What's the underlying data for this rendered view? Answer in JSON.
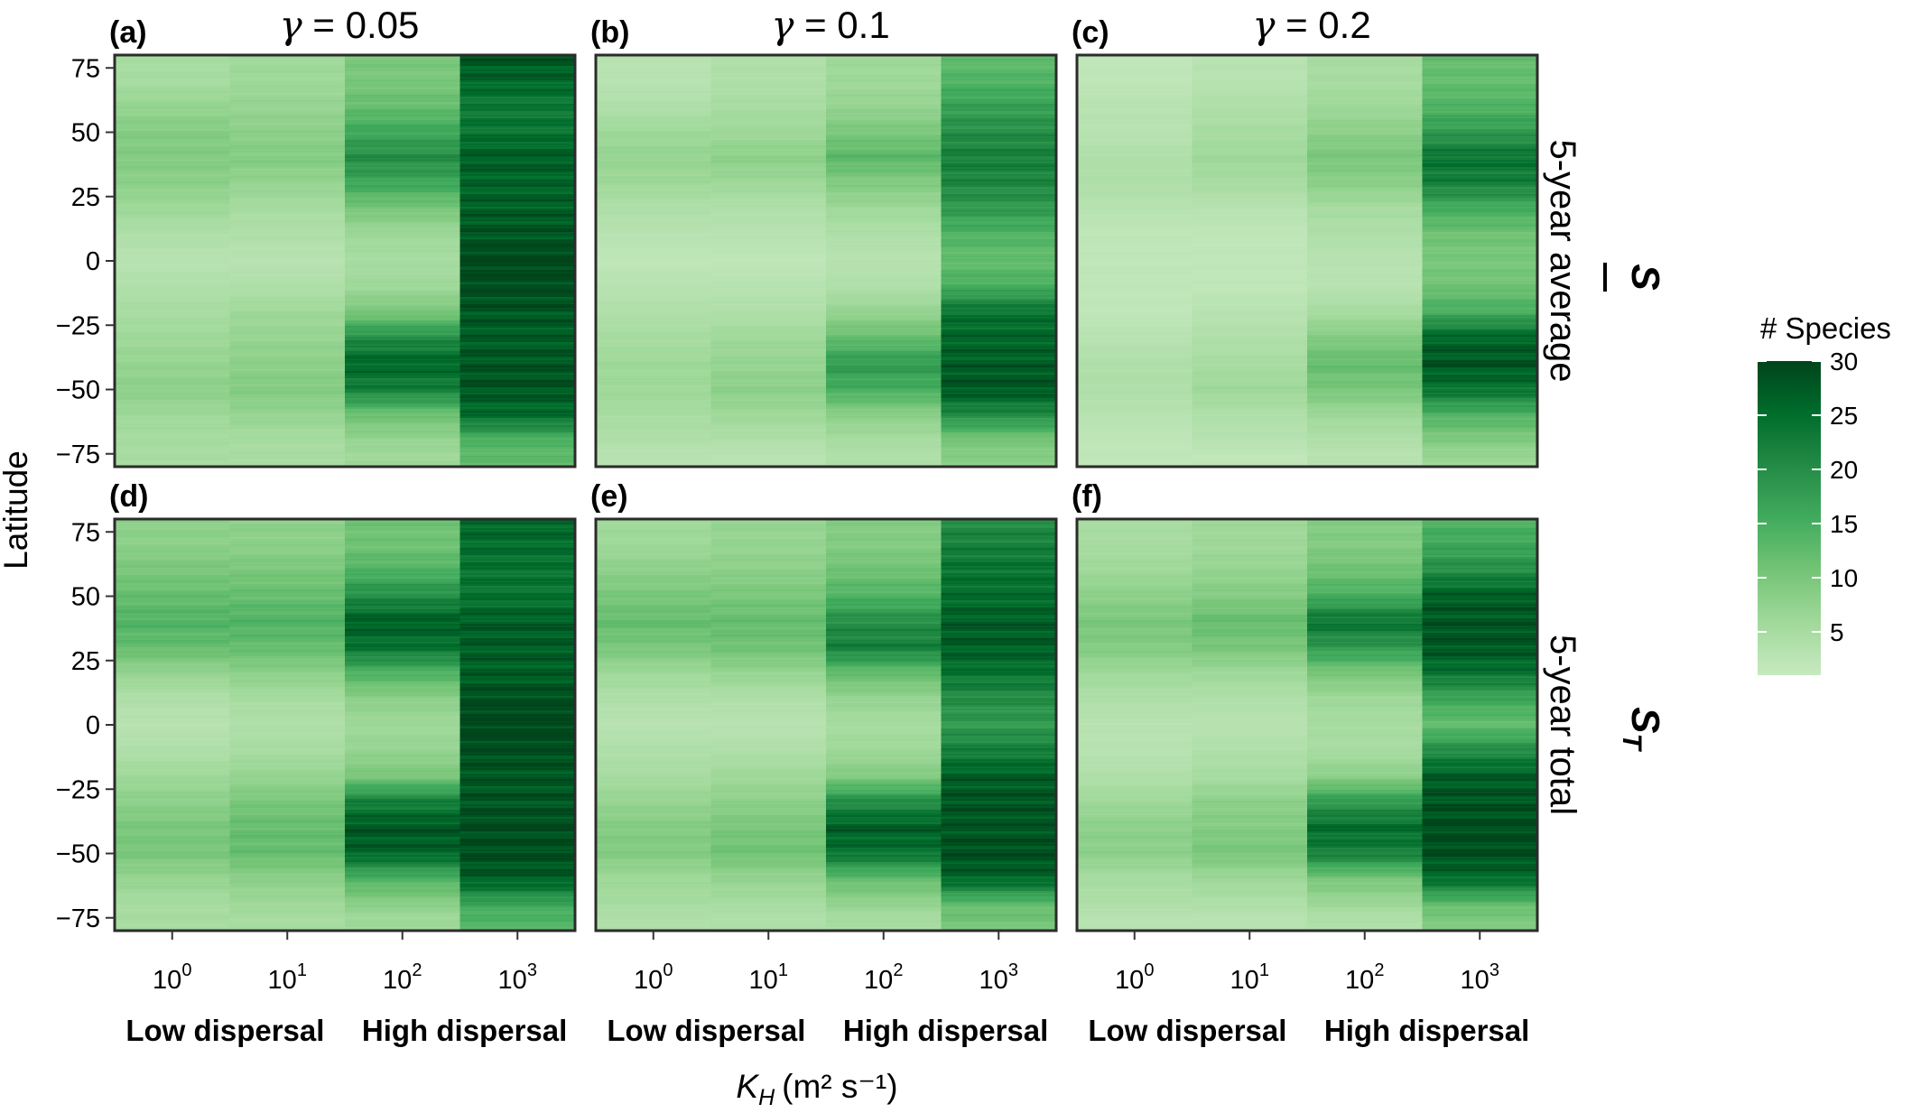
{
  "chart_data": {
    "type": "heatmap",
    "title": "",
    "xlabel": "K_H (m² s⁻¹)",
    "xlabel_main": "K",
    "xlabel_sub": "H",
    "xlabel_units": "(m² s⁻¹)",
    "ylabel": "Latitude",
    "x_categories": [
      "10^0",
      "10^1",
      "10^2",
      "10^3"
    ],
    "x_tick_base": "10",
    "x_tick_exponents": [
      "0",
      "1",
      "2",
      "3"
    ],
    "y_ticks": [
      75,
      50,
      25,
      0,
      -25,
      -50,
      -75
    ],
    "y_tick_labels": [
      "75",
      "50",
      "25",
      "0",
      "−25",
      "−50",
      "−75"
    ],
    "ylim": [
      -80,
      80
    ],
    "dispersal_labels": {
      "low": "Low dispersal",
      "high": "High dispersal"
    },
    "columns": [
      {
        "title": "γ = 0.05",
        "gamma": 0.05
      },
      {
        "title": "γ = 0.1",
        "gamma": 0.1
      },
      {
        "title": "γ = 0.2",
        "gamma": 0.2
      }
    ],
    "rows": [
      {
        "strip": "5-year average",
        "symbol_main": "S",
        "symbol_sub": "",
        "overline": true
      },
      {
        "strip": "5-year total",
        "symbol_main": "S",
        "symbol_sub": "T",
        "overline": false
      }
    ],
    "legend": {
      "title": "# Species",
      "ticks": [
        5,
        10,
        15,
        20,
        25,
        30
      ],
      "range": [
        1,
        30
      ],
      "colors": [
        "#c7e9c0",
        "#a1d99b",
        "#74c476",
        "#41ab5d",
        "#238b45",
        "#006d2c",
        "#00441b"
      ]
    },
    "panels": [
      {
        "label": "(a)",
        "lat_knots": [
          -80,
          -75,
          -70,
          -60,
          -50,
          -40,
          -30,
          -20,
          -10,
          0,
          10,
          20,
          30,
          40,
          50,
          60,
          70,
          80
        ],
        "values": [
          [
            5,
            5,
            5,
            6,
            8,
            7,
            6,
            5,
            4,
            3,
            4,
            6,
            8,
            9,
            9,
            7,
            5,
            5
          ],
          [
            5,
            5,
            5,
            7,
            9,
            8,
            7,
            6,
            4,
            3,
            4,
            5,
            7,
            9,
            8,
            7,
            6,
            6
          ],
          [
            6,
            6,
            7,
            11,
            22,
            26,
            20,
            10,
            6,
            5,
            6,
            10,
            16,
            20,
            16,
            12,
            10,
            10
          ],
          [
            12,
            13,
            14,
            25,
            28,
            28,
            27,
            28,
            29,
            30,
            28,
            27,
            26,
            27,
            24,
            23,
            26,
            28
          ]
        ]
      },
      {
        "label": "(b)",
        "lat_knots": [
          -80,
          -75,
          -70,
          -60,
          -50,
          -40,
          -30,
          -20,
          -10,
          0,
          10,
          20,
          30,
          40,
          50,
          60,
          70,
          80
        ],
        "values": [
          [
            3,
            3,
            4,
            5,
            6,
            6,
            5,
            4,
            3,
            2,
            3,
            4,
            6,
            7,
            6,
            4,
            3,
            3
          ],
          [
            3,
            3,
            4,
            6,
            8,
            7,
            6,
            4,
            3,
            2,
            3,
            4,
            6,
            8,
            6,
            5,
            4,
            4
          ],
          [
            4,
            4,
            5,
            8,
            15,
            18,
            12,
            7,
            4,
            3,
            4,
            6,
            9,
            13,
            10,
            7,
            6,
            6
          ],
          [
            8,
            9,
            10,
            20,
            28,
            27,
            26,
            24,
            15,
            12,
            14,
            18,
            21,
            22,
            20,
            17,
            14,
            12
          ]
        ]
      },
      {
        "label": "(c)",
        "lat_knots": [
          -80,
          -75,
          -70,
          -60,
          -50,
          -40,
          -30,
          -20,
          -10,
          0,
          10,
          20,
          30,
          40,
          50,
          60,
          70,
          80
        ],
        "values": [
          [
            2,
            2,
            2,
            3,
            4,
            4,
            3,
            2,
            2,
            2,
            2,
            3,
            4,
            4,
            3,
            3,
            2,
            2
          ],
          [
            2,
            2,
            3,
            4,
            6,
            5,
            4,
            3,
            2,
            2,
            2,
            3,
            5,
            6,
            5,
            4,
            3,
            3
          ],
          [
            3,
            3,
            4,
            6,
            10,
            12,
            9,
            5,
            3,
            3,
            4,
            5,
            8,
            10,
            8,
            6,
            5,
            5
          ],
          [
            6,
            7,
            9,
            14,
            24,
            28,
            26,
            15,
            11,
            10,
            11,
            15,
            22,
            24,
            18,
            14,
            12,
            12
          ]
        ]
      },
      {
        "label": "(d)",
        "lat_knots": [
          -80,
          -75,
          -70,
          -60,
          -50,
          -40,
          -30,
          -20,
          -10,
          0,
          10,
          20,
          30,
          40,
          50,
          60,
          70,
          80
        ],
        "values": [
          [
            5,
            5,
            5,
            7,
            10,
            10,
            8,
            6,
            4,
            3,
            4,
            7,
            12,
            14,
            12,
            10,
            8,
            8
          ],
          [
            5,
            5,
            6,
            8,
            12,
            12,
            10,
            7,
            5,
            4,
            5,
            8,
            12,
            14,
            12,
            10,
            8,
            8
          ],
          [
            6,
            6,
            8,
            14,
            26,
            28,
            22,
            10,
            7,
            6,
            8,
            14,
            24,
            27,
            20,
            14,
            11,
            11
          ],
          [
            14,
            14,
            16,
            27,
            29,
            29,
            28,
            28,
            29,
            30,
            29,
            27,
            27,
            27,
            24,
            24,
            25,
            26
          ]
        ]
      },
      {
        "label": "(e)",
        "lat_knots": [
          -80,
          -75,
          -70,
          -60,
          -50,
          -40,
          -30,
          -20,
          -10,
          0,
          10,
          20,
          30,
          40,
          50,
          60,
          70,
          80
        ],
        "values": [
          [
            4,
            4,
            5,
            6,
            9,
            9,
            7,
            5,
            4,
            3,
            4,
            6,
            10,
            12,
            10,
            8,
            6,
            6
          ],
          [
            4,
            4,
            5,
            7,
            11,
            10,
            8,
            6,
            4,
            3,
            4,
            7,
            11,
            12,
            10,
            8,
            7,
            7
          ],
          [
            5,
            5,
            7,
            12,
            24,
            27,
            20,
            9,
            6,
            5,
            7,
            12,
            22,
            20,
            14,
            11,
            9,
            9
          ],
          [
            10,
            11,
            12,
            26,
            29,
            28,
            28,
            27,
            22,
            18,
            20,
            24,
            27,
            27,
            25,
            24,
            22,
            20
          ]
        ]
      },
      {
        "label": "(f)",
        "lat_knots": [
          -80,
          -75,
          -70,
          -60,
          -50,
          -40,
          -30,
          -20,
          -10,
          0,
          10,
          20,
          30,
          40,
          50,
          60,
          70,
          80
        ],
        "values": [
          [
            3,
            3,
            4,
            5,
            8,
            8,
            6,
            4,
            3,
            3,
            4,
            6,
            9,
            10,
            8,
            6,
            5,
            5
          ],
          [
            3,
            3,
            4,
            6,
            10,
            9,
            8,
            5,
            4,
            3,
            4,
            6,
            10,
            12,
            9,
            7,
            6,
            6
          ],
          [
            4,
            4,
            6,
            10,
            22,
            25,
            18,
            8,
            5,
            5,
            6,
            10,
            18,
            24,
            15,
            11,
            9,
            9
          ],
          [
            9,
            10,
            12,
            25,
            29,
            29,
            28,
            27,
            20,
            12,
            16,
            24,
            28,
            28,
            27,
            20,
            16,
            14
          ]
        ]
      }
    ]
  }
}
